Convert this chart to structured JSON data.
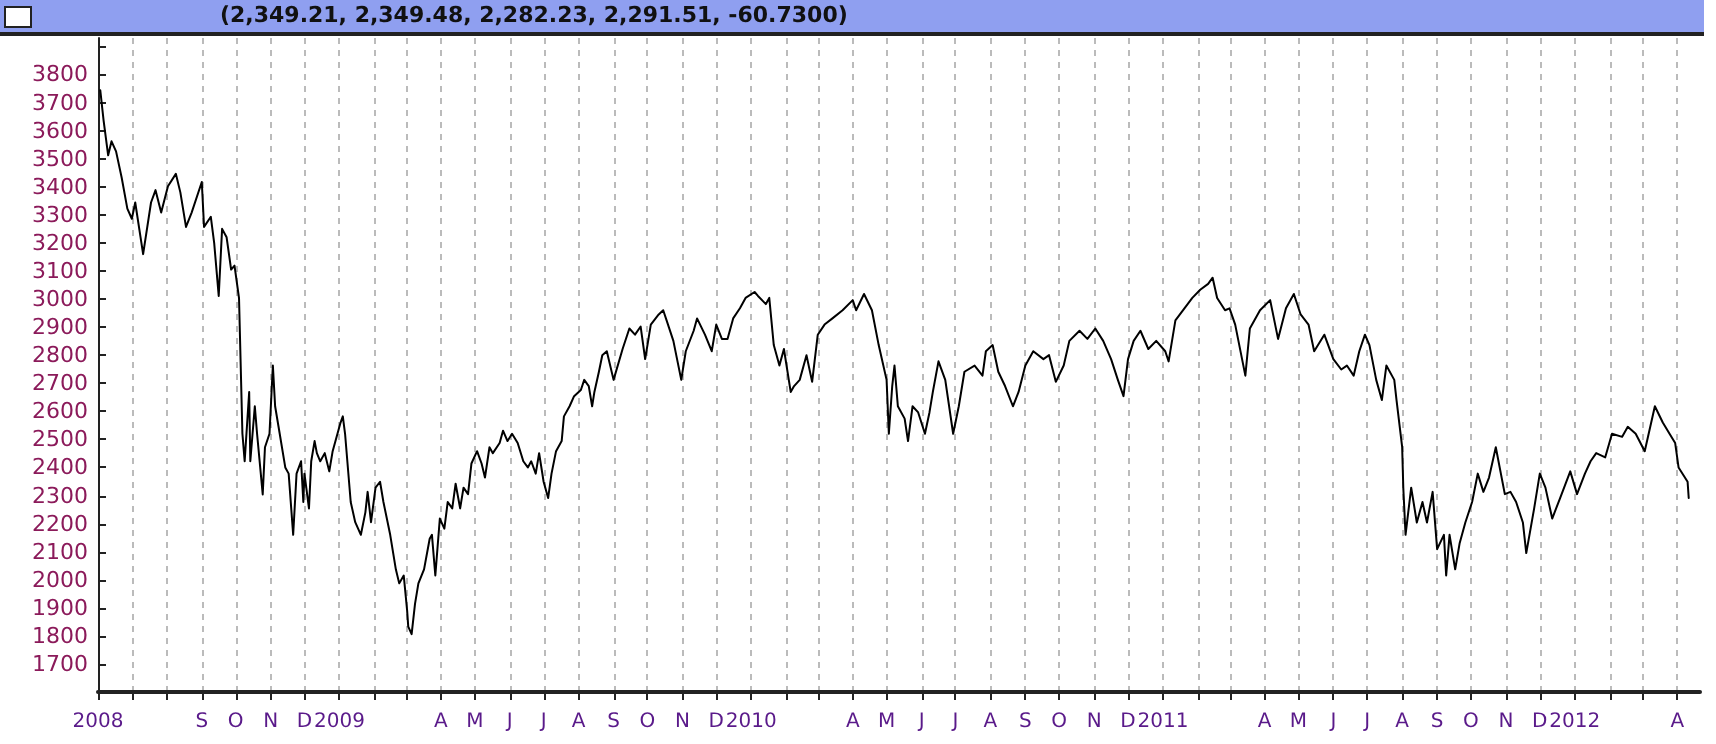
{
  "chart_data": {
    "type": "line",
    "title": "(2,349.21, 2,349.48, 2,282.23, 2,291.51, -60.7300)",
    "color": "#000000",
    "marker": "none",
    "line_style": "solid",
    "grid": "x",
    "xlim": [
      "2008-06-01",
      "2012-04-21"
    ],
    "ylim": [
      1600,
      3930
    ],
    "yticks": [
      {
        "value": 1600,
        "label": null
      },
      1700,
      1800,
      1900,
      2000,
      2100,
      2200,
      2300,
      2400,
      2500,
      2600,
      2700,
      2800,
      2900,
      3000,
      3100,
      3200,
      3300,
      3400,
      3500,
      3600,
      3700,
      3800,
      {
        "value": 3900,
        "label": null
      }
    ],
    "xticks": [
      {
        "value": "2008-06",
        "label": "2008"
      },
      {
        "value": "2008-07",
        "label": null
      },
      {
        "value": "2008-08",
        "label": null
      },
      {
        "value": "2008-09",
        "label": "S"
      },
      {
        "value": "2008-10",
        "label": "O"
      },
      {
        "value": "2008-11",
        "label": "N"
      },
      {
        "value": "2008-12",
        "label": "D"
      },
      {
        "value": "2009-01",
        "label": "2009"
      },
      {
        "value": "2009-02",
        "label": null
      },
      {
        "value": "2009-03",
        "label": null
      },
      {
        "value": "2009-04",
        "label": "A"
      },
      {
        "value": "2009-05",
        "label": "M"
      },
      {
        "value": "2009-06",
        "label": "J"
      },
      {
        "value": "2009-07",
        "label": "J"
      },
      {
        "value": "2009-08",
        "label": "A"
      },
      {
        "value": "2009-09",
        "label": "S"
      },
      {
        "value": "2009-10",
        "label": "O"
      },
      {
        "value": "2009-11",
        "label": "N"
      },
      {
        "value": "2009-12",
        "label": "D"
      },
      {
        "value": "2010-01",
        "label": "2010"
      },
      {
        "value": "2010-02",
        "label": null
      },
      {
        "value": "2010-03",
        "label": null
      },
      {
        "value": "2010-04",
        "label": "A"
      },
      {
        "value": "2010-05",
        "label": "M"
      },
      {
        "value": "2010-06",
        "label": "J"
      },
      {
        "value": "2010-07",
        "label": "J"
      },
      {
        "value": "2010-08",
        "label": "A"
      },
      {
        "value": "2010-09",
        "label": "S"
      },
      {
        "value": "2010-10",
        "label": "O"
      },
      {
        "value": "2010-11",
        "label": "N"
      },
      {
        "value": "2010-12",
        "label": "D"
      },
      {
        "value": "2011-01",
        "label": "2011"
      },
      {
        "value": "2011-02",
        "label": null
      },
      {
        "value": "2011-03",
        "label": null
      },
      {
        "value": "2011-04",
        "label": "A"
      },
      {
        "value": "2011-05",
        "label": "M"
      },
      {
        "value": "2011-06",
        "label": "J"
      },
      {
        "value": "2011-07",
        "label": "J"
      },
      {
        "value": "2011-08",
        "label": "A"
      },
      {
        "value": "2011-09",
        "label": "S"
      },
      {
        "value": "2011-10",
        "label": "O"
      },
      {
        "value": "2011-11",
        "label": "N"
      },
      {
        "value": "2011-12",
        "label": "D"
      },
      {
        "value": "2012-01",
        "label": "2012"
      },
      {
        "value": "2012-02",
        "label": null
      },
      {
        "value": "2012-03",
        "label": null
      },
      {
        "value": "2012-04",
        "label": "A"
      }
    ],
    "x": [
      "2008-06-03",
      "2008-06-06",
      "2008-06-10",
      "2008-06-13",
      "2008-06-17",
      "2008-06-22",
      "2008-06-27",
      "2008-07-01",
      "2008-07-04",
      "2008-07-11",
      "2008-07-18",
      "2008-07-22",
      "2008-07-27",
      "2008-08-02",
      "2008-08-09",
      "2008-08-13",
      "2008-08-18",
      "2008-08-23",
      "2008-09-01",
      "2008-09-03",
      "2008-09-09",
      "2008-09-12",
      "2008-09-16",
      "2008-09-19",
      "2008-09-23",
      "2008-09-27",
      "2008-09-30",
      "2008-10-04",
      "2008-10-07",
      "2008-10-09",
      "2008-10-13",
      "2008-10-14",
      "2008-10-18",
      "2008-10-20",
      "2008-10-25",
      "2008-10-27",
      "2008-10-31",
      "2008-11-03",
      "2008-11-05",
      "2008-11-08",
      "2008-11-14",
      "2008-11-17",
      "2008-11-21",
      "2008-11-24",
      "2008-11-28",
      "2008-11-30",
      "2008-12-01",
      "2008-12-05",
      "2008-12-07",
      "2008-12-10",
      "2008-12-12",
      "2008-12-15",
      "2008-12-19",
      "2008-12-23",
      "2008-12-26",
      "2009-01-02",
      "2009-01-04",
      "2009-01-06",
      "2009-01-11",
      "2009-01-15",
      "2009-01-20",
      "2009-01-24",
      "2009-01-26",
      "2009-01-29",
      "2009-02-02",
      "2009-02-06",
      "2009-02-09",
      "2009-02-15",
      "2009-02-20",
      "2009-02-23",
      "2009-02-27",
      "2009-03-02",
      "2009-03-03",
      "2009-03-06",
      "2009-03-09",
      "2009-03-12",
      "2009-03-17",
      "2009-03-22",
      "2009-03-24",
      "2009-03-27",
      "2009-03-31",
      "2009-04-04",
      "2009-04-07",
      "2009-04-11",
      "2009-04-14",
      "2009-04-18",
      "2009-04-21",
      "2009-04-25",
      "2009-04-28",
      "2009-05-03",
      "2009-05-07",
      "2009-05-10",
      "2009-05-14",
      "2009-05-17",
      "2009-05-23",
      "2009-05-26",
      "2009-05-30",
      "2009-06-03",
      "2009-06-08",
      "2009-06-13",
      "2009-06-17",
      "2009-06-20",
      "2009-06-24",
      "2009-06-27",
      "2009-07-01",
      "2009-07-05",
      "2009-07-08",
      "2009-07-12",
      "2009-07-17",
      "2009-07-19",
      "2009-07-24",
      "2009-07-28",
      "2009-08-03",
      "2009-08-06",
      "2009-08-10",
      "2009-08-13",
      "2009-08-15",
      "2009-08-19",
      "2009-08-22",
      "2009-08-26",
      "2009-09-01",
      "2009-09-09",
      "2009-09-15",
      "2009-09-20",
      "2009-09-25",
      "2009-09-29",
      "2009-10-04",
      "2009-10-11",
      "2009-10-15",
      "2009-10-18",
      "2009-10-24",
      "2009-10-31",
      "2009-11-04",
      "2009-11-11",
      "2009-11-14",
      "2009-11-21",
      "2009-11-27",
      "2009-12-01",
      "2009-12-06",
      "2009-12-11",
      "2009-12-16",
      "2009-12-22",
      "2009-12-27",
      "2010-01-04",
      "2010-01-07",
      "2010-01-14",
      "2010-01-17",
      "2010-01-21",
      "2010-01-26",
      "2010-01-30",
      "2010-02-05",
      "2010-02-08",
      "2010-02-13",
      "2010-02-19",
      "2010-02-24",
      "2010-03-01",
      "2010-03-07",
      "2010-03-14",
      "2010-03-23",
      "2010-04-01",
      "2010-04-04",
      "2010-04-11",
      "2010-04-18",
      "2010-04-24",
      "2010-05-01",
      "2010-05-03",
      "2010-05-06",
      "2010-05-08",
      "2010-05-11",
      "2010-05-17",
      "2010-05-20",
      "2010-05-24",
      "2010-05-29",
      "2010-06-04",
      "2010-06-08",
      "2010-06-11",
      "2010-06-16",
      "2010-06-22",
      "2010-06-29",
      "2010-07-04",
      "2010-07-09",
      "2010-07-18",
      "2010-07-25",
      "2010-07-28",
      "2010-08-03",
      "2010-08-08",
      "2010-08-14",
      "2010-08-21",
      "2010-08-26",
      "2010-09-01",
      "2010-09-08",
      "2010-09-17",
      "2010-09-22",
      "2010-09-28",
      "2010-10-05",
      "2010-10-10",
      "2010-10-19",
      "2010-10-26",
      "2010-11-02",
      "2010-11-09",
      "2010-11-16",
      "2010-11-22",
      "2010-11-27",
      "2010-12-01",
      "2010-12-06",
      "2010-12-12",
      "2010-12-19",
      "2010-12-26",
      "2011-01-03",
      "2011-01-06",
      "2011-01-12",
      "2011-01-20",
      "2011-01-27",
      "2011-02-03",
      "2011-02-10",
      "2011-02-14",
      "2011-02-18",
      "2011-02-25",
      "2011-03-01",
      "2011-03-06",
      "2011-03-15",
      "2011-03-19",
      "2011-03-28",
      "2011-04-06",
      "2011-04-13",
      "2011-04-20",
      "2011-04-27",
      "2011-05-03",
      "2011-05-10",
      "2011-05-15",
      "2011-05-24",
      "2011-06-01",
      "2011-06-08",
      "2011-06-13",
      "2011-06-19",
      "2011-06-24",
      "2011-06-29",
      "2011-07-03",
      "2011-07-09",
      "2011-07-14",
      "2011-07-18",
      "2011-07-25",
      "2011-07-27",
      "2011-08-01",
      "2011-08-02",
      "2011-08-04",
      "2011-08-09",
      "2011-08-14",
      "2011-08-19",
      "2011-08-23",
      "2011-08-28",
      "2011-09-01",
      "2011-09-07",
      "2011-09-09",
      "2011-09-12",
      "2011-09-17",
      "2011-09-21",
      "2011-09-26",
      "2011-10-02",
      "2011-10-07",
      "2011-10-12",
      "2011-10-17",
      "2011-10-23",
      "2011-10-31",
      "2011-11-05",
      "2011-11-10",
      "2011-11-16",
      "2011-11-19",
      "2011-11-26",
      "2011-12-01",
      "2011-12-06",
      "2011-12-12",
      "2011-12-19",
      "2011-12-28",
      "2012-01-03",
      "2012-01-10",
      "2012-01-15",
      "2012-01-20",
      "2012-01-28",
      "2012-02-03",
      "2012-02-12",
      "2012-02-17",
      "2012-02-24",
      "2012-03-03",
      "2012-03-12",
      "2012-03-19",
      "2012-03-25",
      "2012-03-30",
      "2012-04-02",
      "2012-04-10",
      "2012-04-11"
    ],
    "values": [
      3744,
      3635,
      3512,
      3562,
      3526,
      3432,
      3322,
      3286,
      3344,
      3160,
      3344,
      3388,
      3308,
      3402,
      3446,
      3380,
      3257,
      3308,
      3417,
      3257,
      3293,
      3199,
      3011,
      3250,
      3220,
      3105,
      3119,
      3003,
      2521,
      2422,
      2669,
      2422,
      2618,
      2520,
      2304,
      2472,
      2520,
      2763,
      2618,
      2546,
      2400,
      2378,
      2160,
      2378,
      2422,
      2277,
      2378,
      2254,
      2422,
      2494,
      2451,
      2422,
      2451,
      2386,
      2458,
      2560,
      2582,
      2520,
      2277,
      2205,
      2160,
      2240,
      2313,
      2205,
      2328,
      2349,
      2277,
      2160,
      2037,
      1987,
      2015,
      1891,
      1833,
      1806,
      1914,
      1987,
      2037,
      2146,
      2160,
      2015,
      2218,
      2182,
      2277,
      2254,
      2342,
      2254,
      2328,
      2305,
      2414,
      2458,
      2414,
      2364,
      2472,
      2451,
      2487,
      2531,
      2494,
      2520,
      2487,
      2422,
      2400,
      2422,
      2378,
      2451,
      2349,
      2291,
      2378,
      2458,
      2494,
      2582,
      2618,
      2654,
      2676,
      2712,
      2690,
      2618,
      2669,
      2741,
      2800,
      2814,
      2712,
      2822,
      2895,
      2873,
      2902,
      2786,
      2909,
      2945,
      2960,
      2924,
      2851,
      2712,
      2814,
      2887,
      2931,
      2873,
      2814,
      2909,
      2858,
      2858,
      2931,
      2967,
      3004,
      3025,
      3011,
      2982,
      3004,
      2836,
      2763,
      2822,
      2669,
      2690,
      2712,
      2800,
      2705,
      2873,
      2909,
      2931,
      2960,
      2996,
      2960,
      3018,
      2960,
      2836,
      2712,
      2520,
      2690,
      2763,
      2618,
      2574,
      2494,
      2618,
      2596,
      2520,
      2596,
      2669,
      2778,
      2712,
      2520,
      2618,
      2741,
      2763,
      2727,
      2814,
      2836,
      2741,
      2690,
      2618,
      2669,
      2763,
      2814,
      2786,
      2800,
      2705,
      2763,
      2851,
      2887,
      2858,
      2895,
      2851,
      2786,
      2712,
      2654,
      2786,
      2851,
      2887,
      2822,
      2851,
      2814,
      2778,
      2924,
      2967,
      3004,
      3033,
      3054,
      3076,
      3004,
      2960,
      2967,
      2909,
      2727,
      2895,
      2960,
      2996,
      2858,
      2967,
      3018,
      2945,
      2909,
      2814,
      2873,
      2786,
      2749,
      2763,
      2727,
      2814,
      2873,
      2836,
      2712,
      2640,
      2763,
      2712,
      2640,
      2472,
      2328,
      2160,
      2328,
      2204,
      2277,
      2204,
      2313,
      2109,
      2160,
      2015,
      2160,
      2037,
      2131,
      2204,
      2277,
      2378,
      2313,
      2364,
      2472,
      2305,
      2313,
      2277,
      2204,
      2095,
      2254,
      2378,
      2328,
      2218,
      2291,
      2386,
      2305,
      2378,
      2422,
      2451,
      2436,
      2520,
      2509,
      2545,
      2520,
      2458,
      2618,
      2560,
      2520,
      2487,
      2400,
      2349,
      2291
    ]
  }
}
